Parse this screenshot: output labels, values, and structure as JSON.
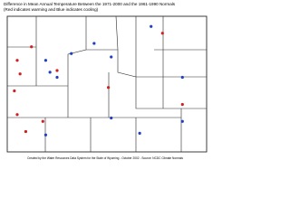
{
  "title": "Difference in Mean Annual Temperature Between the 1971-2000 and the 1961-1990 Normals",
  "subtitle": "(Red indicates warming and Blue indicates cooling)",
  "footer": "Created by the Water Resources Data System for the State of Wyoming - October 2002 - Source: NCDC Climate Normals",
  "stations": [
    {
      "lon": -110.7,
      "lat": 43.7,
      "color": "#d02020"
    },
    {
      "lon": -110.6,
      "lat": 43.3,
      "color": "#d02020"
    },
    {
      "lon": -110.8,
      "lat": 42.8,
      "color": "#d02020"
    },
    {
      "lon": -110.7,
      "lat": 42.1,
      "color": "#d02020"
    },
    {
      "lon": -110.4,
      "lat": 41.6,
      "color": "#d02020"
    },
    {
      "lon": -110.2,
      "lat": 44.1,
      "color": "#d02020"
    },
    {
      "lon": -109.8,
      "lat": 41.9,
      "color": "#d02020"
    },
    {
      "lon": -109.3,
      "lat": 43.4,
      "color": "#d02020"
    },
    {
      "lon": -107.5,
      "lat": 42.9,
      "color": "#d02020"
    },
    {
      "lon": -105.6,
      "lat": 44.5,
      "color": "#d02020"
    },
    {
      "lon": -104.9,
      "lat": 42.4,
      "color": "#d02020"
    },
    {
      "lon": -109.7,
      "lat": 43.7,
      "color": "#2040c0"
    },
    {
      "lon": -109.55,
      "lat": 43.35,
      "color": "#2040c0"
    },
    {
      "lon": -109.3,
      "lat": 43.2,
      "color": "#2040c0"
    },
    {
      "lon": -108.8,
      "lat": 43.9,
      "color": "#2040c0"
    },
    {
      "lon": -108.0,
      "lat": 44.2,
      "color": "#2040c0"
    },
    {
      "lon": -107.4,
      "lat": 43.8,
      "color": "#2040c0"
    },
    {
      "lon": -106.0,
      "lat": 44.7,
      "color": "#2040c0"
    },
    {
      "lon": -104.9,
      "lat": 43.2,
      "color": "#2040c0"
    },
    {
      "lon": -104.9,
      "lat": 41.9,
      "color": "#2040c0"
    },
    {
      "lon": -106.4,
      "lat": 41.55,
      "color": "#2040c0"
    },
    {
      "lon": -109.7,
      "lat": 41.5,
      "color": "#2040c0"
    },
    {
      "lon": -107.4,
      "lat": 42.0,
      "color": "#2040c0"
    }
  ]
}
